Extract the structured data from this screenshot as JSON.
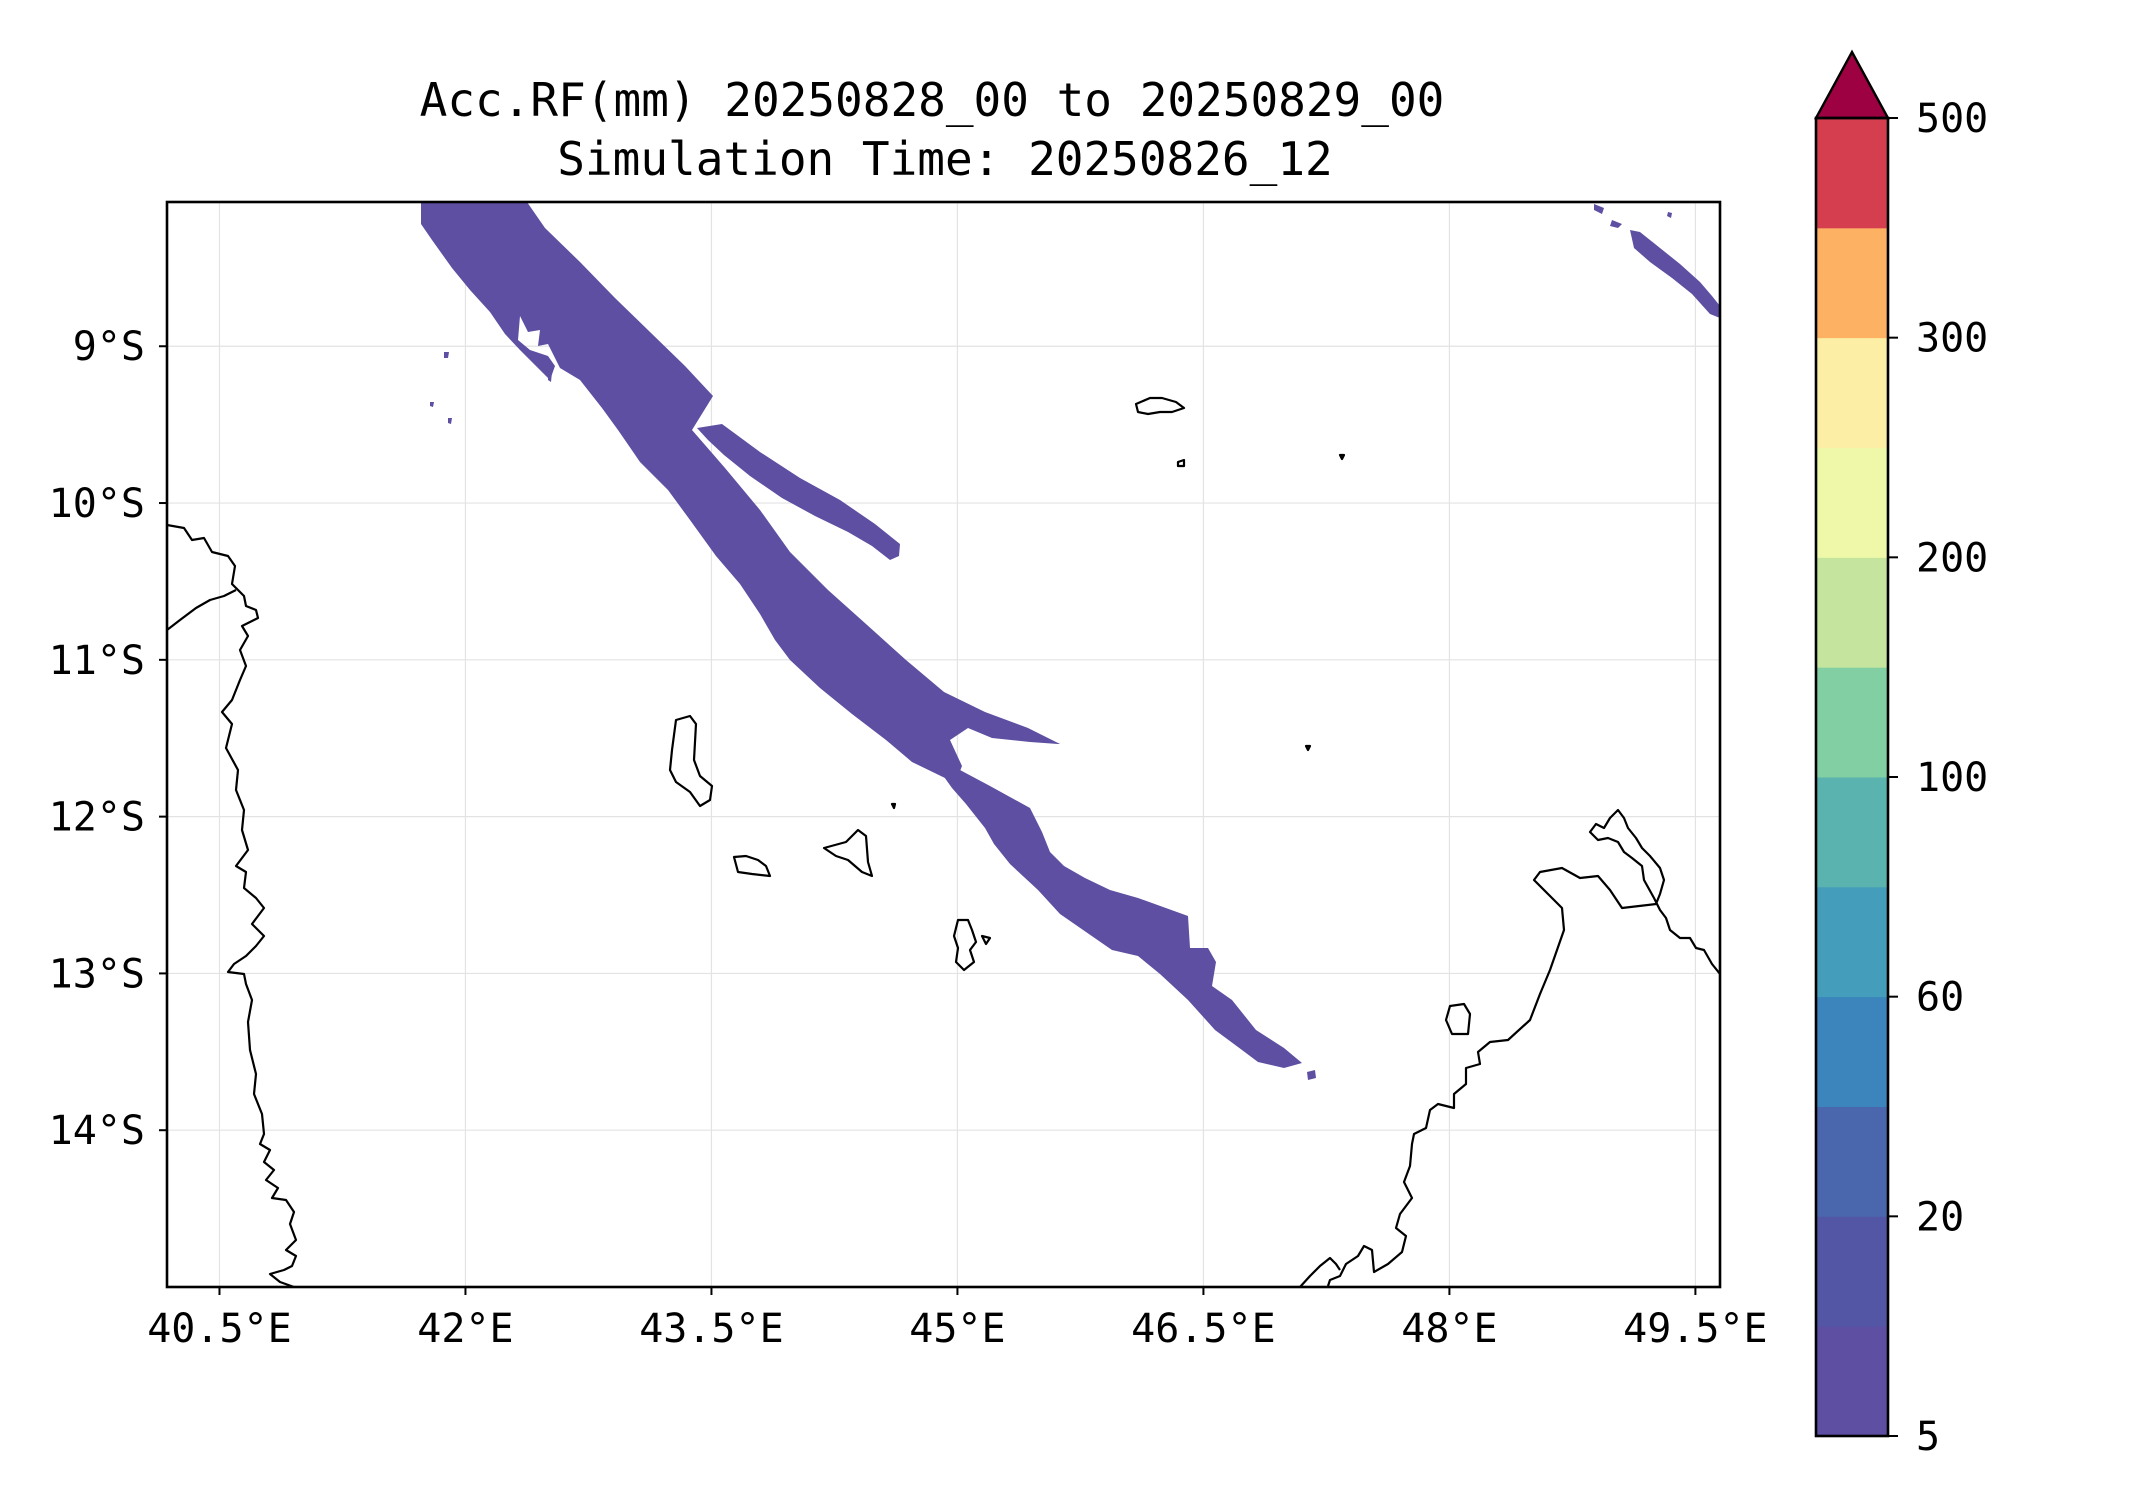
{
  "title": {
    "line1": "Acc.RF(mm) 20250828_00 to 20250829_00",
    "line2": "Simulation Time: 20250826_12"
  },
  "map": {
    "lon_range": [
      40.18,
      49.65
    ],
    "lat_range": [
      -15.0,
      -8.08
    ],
    "x_ticks": [
      {
        "value": 40.5,
        "label": "40.5°E"
      },
      {
        "value": 42.0,
        "label": "42°E"
      },
      {
        "value": 43.5,
        "label": "43.5°E"
      },
      {
        "value": 45.0,
        "label": "45°E"
      },
      {
        "value": 46.5,
        "label": "46.5°E"
      },
      {
        "value": 48.0,
        "label": "48°E"
      },
      {
        "value": 49.5,
        "label": "49.5°E"
      }
    ],
    "y_ticks": [
      {
        "value": -9,
        "label": "9°S"
      },
      {
        "value": -10,
        "label": "10°S"
      },
      {
        "value": -11,
        "label": "11°S"
      },
      {
        "value": -12,
        "label": "12°S"
      },
      {
        "value": -13,
        "label": "13°S"
      },
      {
        "value": -14,
        "label": "14°S"
      }
    ],
    "gridlines": true,
    "rain_color": "#5e4fa2",
    "coastline_color": "#000000"
  },
  "colorbar": {
    "levels": [
      5,
      10,
      20,
      40,
      60,
      80,
      100,
      150,
      200,
      250,
      300,
      400,
      500
    ],
    "colors": [
      "#5e4fa2",
      "#5356a5",
      "#4a66ad",
      "#3b84bc",
      "#449dba",
      "#5ab3ae",
      "#83cfa4",
      "#c5e59e",
      "#eef8a8",
      "#fdeea6",
      "#fcb262",
      "#d53e4f"
    ],
    "extend_color": "#9e0142",
    "extend": "max",
    "tick_labels": [
      {
        "level": 5,
        "label": "5"
      },
      {
        "level": 20,
        "label": "20"
      },
      {
        "level": 60,
        "label": "60"
      },
      {
        "level": 100,
        "label": "100"
      },
      {
        "level": 200,
        "label": "200"
      },
      {
        "level": 300,
        "label": "300"
      },
      {
        "level": 500,
        "label": "500"
      }
    ]
  }
}
